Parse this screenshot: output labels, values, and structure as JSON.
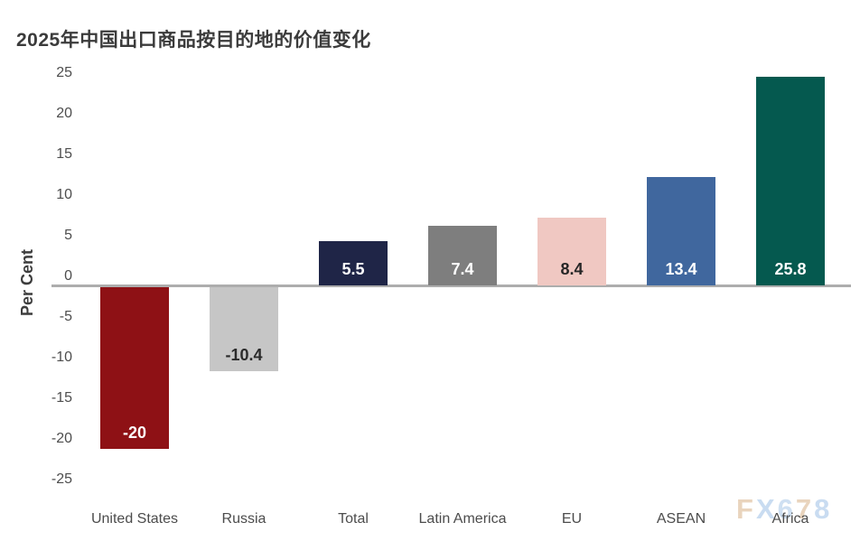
{
  "title": "2025年中国出口商品按目的地的价值变化",
  "watermark": {
    "text": "FX678",
    "letters": [
      {
        "ch": "F",
        "color": "#e9d4bd"
      },
      {
        "ch": "X",
        "color": "#c9dcf1"
      },
      {
        "ch": "6",
        "color": "#cfe0f2"
      },
      {
        "ch": "7",
        "color": "#e9d4bd"
      },
      {
        "ch": "8",
        "color": "#c9dcf1"
      }
    ]
  },
  "chart_data": {
    "type": "bar",
    "title": "2025年中国出口商品按目的地的价值变化",
    "xlabel": "",
    "ylabel": "Per Cent",
    "ylim": [
      -25,
      25
    ],
    "yticks": [
      25,
      20,
      15,
      10,
      5,
      0,
      -5,
      -10,
      -15,
      -20,
      -25
    ],
    "grid": false,
    "legend_position": "none",
    "categories": [
      "United States",
      "Russia",
      "Total",
      "Latin America",
      "EU",
      "ASEAN",
      "Africa"
    ],
    "values": [
      -20,
      -10.4,
      5.5,
      7.4,
      8.4,
      13.4,
      25.8
    ],
    "value_labels": [
      "-20",
      "-10.4",
      "5.5",
      "7.4",
      "8.4",
      "13.4",
      "25.8"
    ],
    "bar_colors": [
      "#8e1115",
      "#c6c6c6",
      "#1f2547",
      "#7e7e7e",
      "#f0c8c2",
      "#40679e",
      "#05594f"
    ],
    "label_colors": [
      "#ffffff",
      "#2b2b2b",
      "#ffffff",
      "#ffffff",
      "#262626",
      "#ffffff",
      "#ffffff"
    ],
    "axis_line_color": "#adadad"
  }
}
